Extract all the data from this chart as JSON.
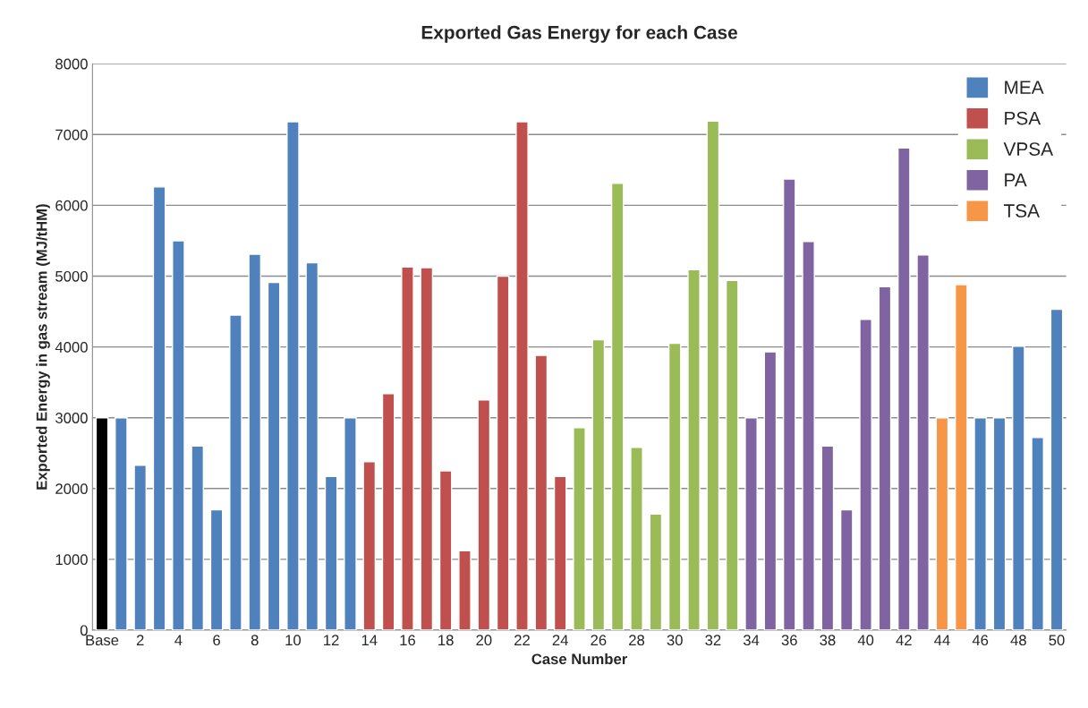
{
  "chart_data": {
    "type": "bar",
    "title": "Exported Gas Energy for each Case",
    "xlabel": "Case Number",
    "ylabel": "Exported Energy in gas stream (MJ/tHM)",
    "categories": [
      "Base",
      null,
      "2",
      null,
      "4",
      null,
      "6",
      null,
      "8",
      null,
      "10",
      null,
      "12",
      null,
      "14",
      null,
      "16",
      null,
      "18",
      null,
      "20",
      null,
      "22",
      null,
      "24",
      null,
      "26",
      null,
      "28",
      null,
      "30",
      null,
      "32",
      null,
      "34",
      null,
      "36",
      null,
      "38",
      null,
      "40",
      null,
      "42",
      null,
      "44",
      null,
      "46",
      null,
      "48",
      null,
      "50"
    ],
    "series": [
      {
        "color": "#000000",
        "values": [
          3000,
          null,
          null,
          null,
          null,
          null,
          null,
          null,
          null,
          null,
          null,
          null,
          null,
          null,
          null,
          null,
          null,
          null,
          null,
          null,
          null,
          null,
          null,
          null,
          null,
          null,
          null,
          null,
          null,
          null,
          null,
          null,
          null,
          null,
          null,
          null,
          null,
          null,
          null,
          null,
          null,
          null,
          null,
          null,
          null,
          null,
          null,
          null,
          null,
          null,
          null
        ]
      },
      {
        "name": "MEA",
        "color": "#4f81bd",
        "values": [
          null,
          3000,
          2330,
          6260,
          5500,
          2600,
          1700,
          4450,
          5310,
          4910,
          7180,
          5190,
          2170,
          3000,
          null,
          null,
          null,
          null,
          null,
          null,
          null,
          null,
          null,
          null,
          null,
          null,
          null,
          null,
          null,
          null,
          null,
          null,
          null,
          null,
          null,
          null,
          null,
          null,
          null,
          null,
          null,
          null,
          null,
          null,
          null,
          null,
          3000,
          3000,
          4010,
          2720,
          4530
        ]
      },
      {
        "name": "PSA",
        "color": "#c0504d",
        "values": [
          null,
          null,
          null,
          null,
          null,
          null,
          null,
          null,
          null,
          null,
          null,
          null,
          null,
          null,
          2380,
          3340,
          5130,
          5120,
          2250,
          1120,
          3250,
          5000,
          7180,
          3880,
          2170,
          null,
          null,
          null,
          null,
          null,
          null,
          null,
          null,
          null,
          null,
          null,
          null,
          null,
          null,
          null,
          null,
          null,
          null,
          null,
          null,
          null,
          null,
          null,
          null,
          null,
          null
        ]
      },
      {
        "name": "VPSA",
        "color": "#9bbb59",
        "values": [
          null,
          null,
          null,
          null,
          null,
          null,
          null,
          null,
          null,
          null,
          null,
          null,
          null,
          null,
          null,
          null,
          null,
          null,
          null,
          null,
          null,
          null,
          null,
          null,
          null,
          2860,
          4100,
          6310,
          2580,
          1640,
          4050,
          5090,
          7190,
          4940,
          null,
          null,
          null,
          null,
          null,
          null,
          null,
          null,
          null,
          null,
          null,
          null,
          null,
          null,
          null,
          null,
          null
        ]
      },
      {
        "name": "PA",
        "color": "#8064a2",
        "values": [
          null,
          null,
          null,
          null,
          null,
          null,
          null,
          null,
          null,
          null,
          null,
          null,
          null,
          null,
          null,
          null,
          null,
          null,
          null,
          null,
          null,
          null,
          null,
          null,
          null,
          null,
          null,
          null,
          null,
          null,
          null,
          null,
          null,
          null,
          3000,
          3930,
          6370,
          5490,
          2600,
          1700,
          4390,
          4850,
          6810,
          5300,
          null,
          null,
          null,
          null,
          null,
          null,
          null
        ]
      },
      {
        "name": "TSA",
        "color": "#f79646",
        "values": [
          null,
          null,
          null,
          null,
          null,
          null,
          null,
          null,
          null,
          null,
          null,
          null,
          null,
          null,
          null,
          null,
          null,
          null,
          null,
          null,
          null,
          null,
          null,
          null,
          null,
          null,
          null,
          null,
          null,
          null,
          null,
          null,
          null,
          null,
          null,
          null,
          null,
          null,
          null,
          null,
          null,
          null,
          null,
          null,
          3000,
          4880,
          null,
          null,
          null,
          null,
          null
        ]
      }
    ],
    "ylim": [
      0,
      8000
    ],
    "yticks": [
      0,
      1000,
      2000,
      3000,
      4000,
      5000,
      6000,
      7000,
      8000
    ],
    "grid": "y",
    "legend": "top right"
  }
}
